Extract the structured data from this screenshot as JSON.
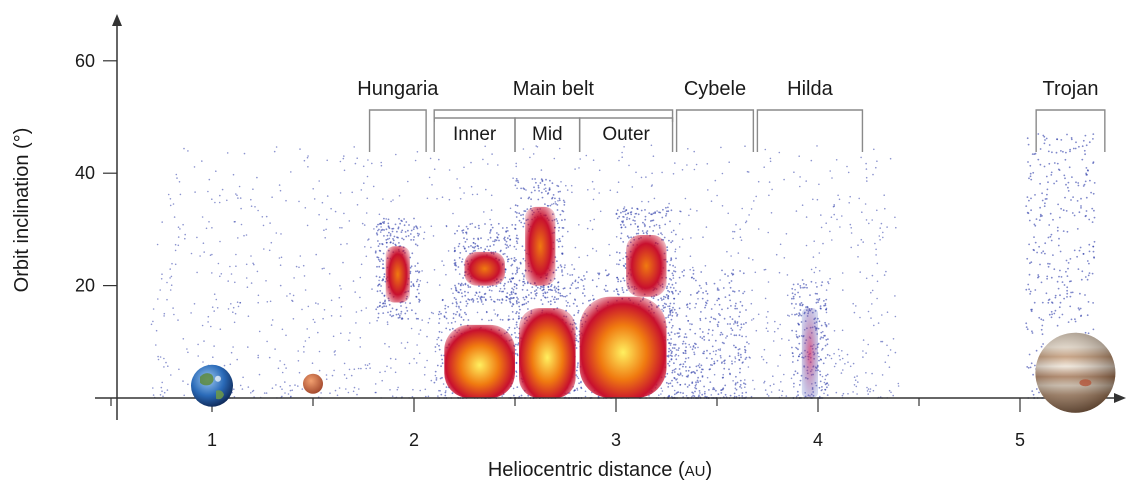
{
  "chart_data": {
    "type": "scatter",
    "xlabel": "Heliocentric distance",
    "xlabel_unit": "AU",
    "ylabel": "Orbit inclination (°)",
    "xlim": [
      0.5,
      5.5
    ],
    "ylim": [
      -2,
      67
    ],
    "x_ticks": [
      1,
      2,
      3,
      4,
      5
    ],
    "y_ticks": [
      20,
      40,
      60
    ],
    "grid": false,
    "colors": {
      "sparse": "#2b3aa8",
      "dense_low": "#c8102e",
      "dense_mid": "#f07a10",
      "dense_high": "#fff060",
      "axis": "#333333"
    },
    "planets": [
      {
        "name": "earth-icon",
        "x": 1.0,
        "y": 2
      },
      {
        "name": "mars-icon",
        "x": 1.5,
        "y": 2
      },
      {
        "name": "jupiter-icon",
        "x": 5.2,
        "y": 2
      }
    ],
    "groups": [
      {
        "label": "Hungaria",
        "x_range": [
          1.78,
          2.06
        ],
        "level": "top"
      },
      {
        "label": "Main belt",
        "x_range": [
          2.1,
          3.28
        ],
        "level": "top"
      },
      {
        "label": "Inner",
        "x_range": [
          2.1,
          2.5
        ],
        "level": "sub"
      },
      {
        "label": "Mid",
        "x_range": [
          2.5,
          2.82
        ],
        "level": "sub"
      },
      {
        "label": "Outer",
        "x_range": [
          2.82,
          3.28
        ],
        "level": "sub"
      },
      {
        "label": "Cybele",
        "x_range": [
          3.3,
          3.68
        ],
        "level": "top"
      },
      {
        "label": "Hilda",
        "x_range": [
          3.7,
          4.22
        ],
        "level": "top"
      },
      {
        "label": "Trojan",
        "x_range": [
          5.08,
          5.42
        ],
        "level": "top"
      }
    ],
    "density_regions": [
      {
        "name": "Hungaria",
        "x_range": [
          1.86,
          1.98
        ],
        "y_range": [
          17,
          27
        ],
        "intensity": "high"
      },
      {
        "name": "Inner low",
        "x_range": [
          2.15,
          2.5
        ],
        "y_range": [
          0,
          13
        ],
        "intensity": "very high"
      },
      {
        "name": "Inner Phocaea",
        "x_range": [
          2.25,
          2.45
        ],
        "y_range": [
          20,
          26
        ],
        "intensity": "high"
      },
      {
        "name": "Mid low",
        "x_range": [
          2.52,
          2.8
        ],
        "y_range": [
          0,
          16
        ],
        "intensity": "very high"
      },
      {
        "name": "Mid high",
        "x_range": [
          2.55,
          2.7
        ],
        "y_range": [
          20,
          34
        ],
        "intensity": "high"
      },
      {
        "name": "Outer low",
        "x_range": [
          2.82,
          3.25
        ],
        "y_range": [
          0,
          18
        ],
        "intensity": "very high"
      },
      {
        "name": "Outer high",
        "x_range": [
          3.05,
          3.25
        ],
        "y_range": [
          18,
          29
        ],
        "intensity": "high"
      },
      {
        "name": "Cybele",
        "x_range": [
          3.3,
          3.6
        ],
        "y_range": [
          0,
          18
        ],
        "intensity": "low"
      },
      {
        "name": "Hilda",
        "x_range": [
          3.92,
          4.0
        ],
        "y_range": [
          0,
          16
        ],
        "intensity": "medium"
      },
      {
        "name": "Trojan",
        "x_range": [
          5.08,
          5.32
        ],
        "y_range": [
          2,
          42
        ],
        "intensity": "low"
      }
    ]
  }
}
